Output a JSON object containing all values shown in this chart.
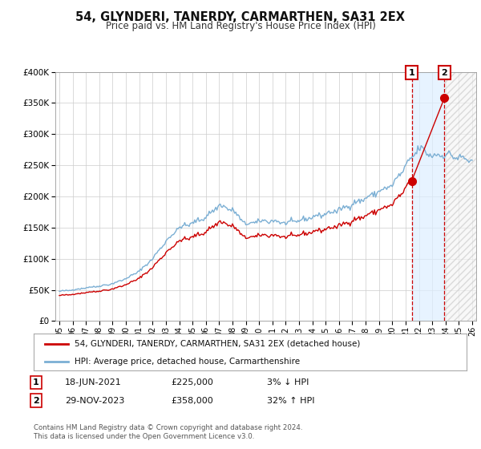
{
  "title": "54, GLYNDERI, TANERDY, CARMARTHEN, SA31 2EX",
  "subtitle": "Price paid vs. HM Land Registry's House Price Index (HPI)",
  "legend_line1": "54, GLYNDERI, TANERDY, CARMARTHEN, SA31 2EX (detached house)",
  "legend_line2": "HPI: Average price, detached house, Carmarthenshire",
  "transaction1_date": "18-JUN-2021",
  "transaction1_price": "£225,000",
  "transaction1_hpi": "3% ↓ HPI",
  "transaction2_date": "29-NOV-2023",
  "transaction2_price": "£358,000",
  "transaction2_hpi": "32% ↑ HPI",
  "footer": "Contains HM Land Registry data © Crown copyright and database right 2024.\nThis data is licensed under the Open Government Licence v3.0.",
  "hpi_color": "#7bafd4",
  "price_color": "#cc0000",
  "ylim": [
    0,
    400000
  ],
  "yticks": [
    0,
    50000,
    100000,
    150000,
    200000,
    250000,
    300000,
    350000,
    400000
  ],
  "background_color": "#ffffff",
  "grid_color": "#cccccc",
  "marker1_x": 2021.46,
  "marker1_y": 225000,
  "marker2_x": 2023.91,
  "marker2_y": 358000,
  "xlim_left": 1994.7,
  "xlim_right": 2026.3
}
